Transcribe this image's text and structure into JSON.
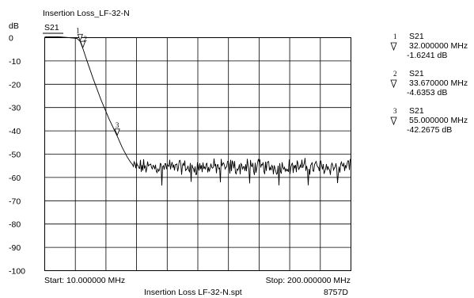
{
  "chart_data": {
    "type": "line",
    "title": "Insertion Loss_LF-32-N",
    "ylabel": "dB",
    "series_label": "S21",
    "x_unit": "MHz",
    "xlim": [
      10,
      200
    ],
    "ylim": [
      -100,
      0
    ],
    "y_ticks": [
      "0",
      "-10",
      "-20",
      "-30",
      "-40",
      "-50",
      "-60",
      "-70",
      "-80",
      "-90",
      "-100"
    ],
    "x_divisions": 10,
    "grid": true,
    "start_label": "Start: 10.000000 MHz",
    "stop_label": "Stop: 200.000000 MHz",
    "footer_file": "Insertion Loss  LF-32-N.spt",
    "footer_model": "8757D",
    "passband": {
      "x": [
        10,
        18,
        25,
        30,
        32
      ],
      "y": [
        0.3,
        0.4,
        0.0,
        -0.3,
        -1.6241
      ]
    },
    "rolloff": {
      "x": [
        32,
        33.67,
        36,
        40,
        45,
        50,
        55,
        58,
        61,
        63,
        64.5
      ],
      "y": [
        -1.6241,
        -4.6353,
        -9.5,
        -17.5,
        -26.8,
        -35,
        -42.2675,
        -47,
        -51,
        -53.2,
        -54.5
      ]
    },
    "stopband": {
      "x_range": [
        64.5,
        200
      ],
      "mean": -55.5,
      "spread": 2.6,
      "spike_min": -63.5
    },
    "markers": [
      {
        "id": "1",
        "series": "S21",
        "x": 32.0,
        "y": -1.6241,
        "freq": "32.000000 MHz",
        "value": "-1.6241 dB"
      },
      {
        "id": "2",
        "series": "S21",
        "x": 33.67,
        "y": -4.6353,
        "freq": "33.670000 MHz",
        "value": "-4.6353 dB"
      },
      {
        "id": "3",
        "series": "S21",
        "x": 55.0,
        "y": -42.2675,
        "freq": "55.000000 MHz",
        "value": "-42.2675 dB"
      }
    ],
    "colors": {
      "trace": "#000000",
      "grid": "#000000",
      "background": "#ffffff"
    }
  }
}
